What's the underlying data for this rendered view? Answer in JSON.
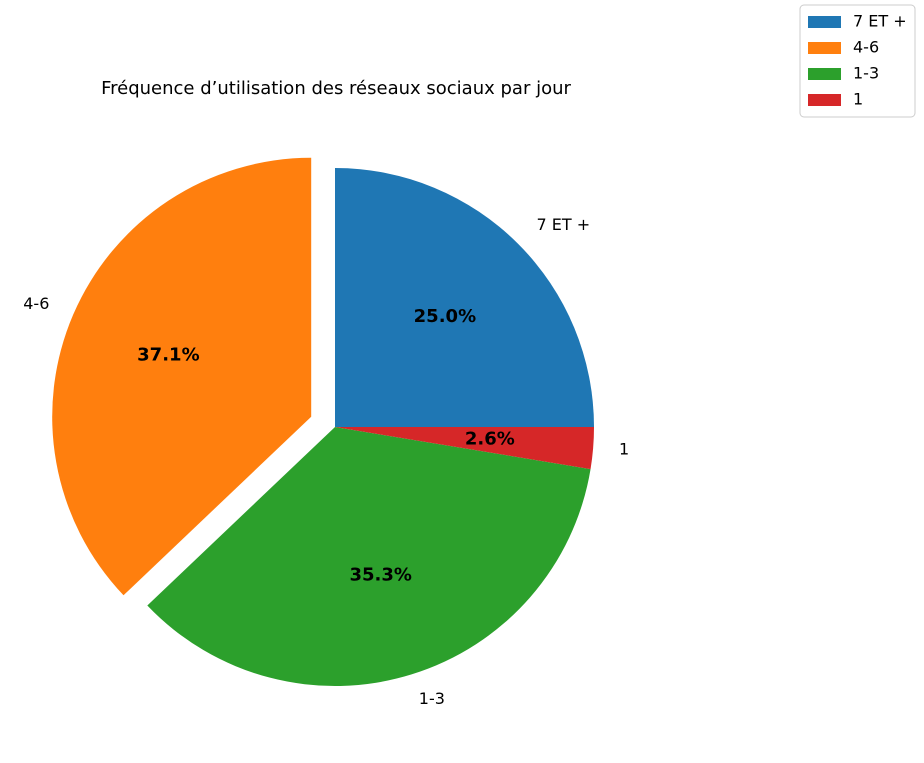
{
  "chart_data": {
    "type": "pie",
    "title": "Fréquence d’utilisation des réseaux sociaux par jour",
    "slices": [
      {
        "label": "7 ET +",
        "value": 25.0,
        "pct_label": "25.0%",
        "color": "#1f77b4",
        "exploded": false
      },
      {
        "label": "4-6",
        "value": 37.1,
        "pct_label": "37.1%",
        "color": "#ff7f0e",
        "exploded": true
      },
      {
        "label": "1-3",
        "value": 35.3,
        "pct_label": "35.3%",
        "color": "#2ca02c",
        "exploded": false
      },
      {
        "label": "1",
        "value": 2.6,
        "pct_label": "2.6%",
        "color": "#d62728",
        "exploded": false
      }
    ],
    "start_angle_deg": 0,
    "direction": "counterclockwise",
    "legend": {
      "placement": "top-right",
      "entries": [
        "7 ET +",
        "4-6",
        "1-3",
        "1"
      ]
    }
  }
}
